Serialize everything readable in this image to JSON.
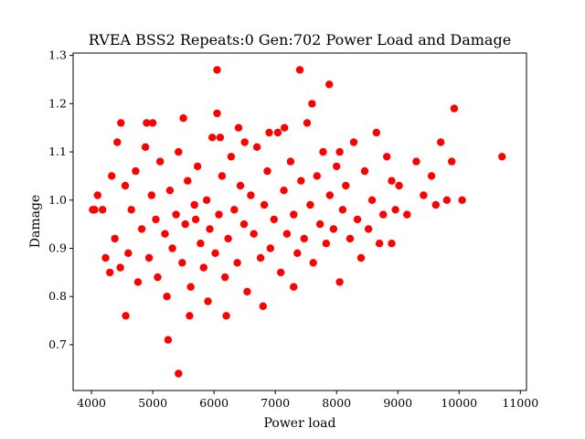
{
  "chart_data": {
    "type": "scatter",
    "title": "RVEA BSS2 Repeats:0 Gen:702 Power Load and Damage",
    "xlabel": "Power load",
    "ylabel": "Damage",
    "xlim": [
      3700,
      11100
    ],
    "ylim": [
      0.605,
      1.305
    ],
    "xticks": [
      4000,
      5000,
      6000,
      7000,
      8000,
      9000,
      10000,
      11000
    ],
    "yticks": [
      0.7,
      0.8,
      0.9,
      1.0,
      1.1,
      1.2,
      1.3
    ],
    "grid": false,
    "legend": "none",
    "marker_color": "#ff0000",
    "series": [
      {
        "x": [
          4050,
          4100,
          4180,
          4230,
          4300,
          4330,
          4380,
          4420,
          4470,
          4550,
          4600,
          4650,
          4720,
          4760,
          4820,
          4880,
          4940,
          4980,
          5050,
          5080,
          5120,
          5200,
          5230,
          5280,
          5320,
          5380,
          5420,
          5480,
          5530,
          5570,
          5620,
          5680,
          5730,
          5780,
          5830,
          5880,
          5930,
          5970,
          6020,
          6080,
          6130,
          6180,
          6230,
          6280,
          6330,
          6380,
          6430,
          6490,
          6540,
          6600,
          6650,
          6700,
          6760,
          6820,
          6870,
          6920,
          6980,
          7040,
          7090,
          7140,
          7190,
          7250,
          7300,
          7360,
          7420,
          7470,
          7520,
          7570,
          7620,
          7680,
          7730,
          7780,
          7830,
          7890,
          7950,
          8000,
          8050,
          8100,
          8150,
          8220,
          8280,
          8340,
          8400,
          8460,
          8520,
          8580,
          8650,
          8700,
          8760,
          8820,
          8900,
          8960,
          9020,
          9150,
          9300,
          9420,
          9550,
          9620,
          9700,
          9800,
          9880,
          10050,
          10700,
          9920,
          6050,
          7400,
          7880,
          4480,
          5250,
          5420,
          6050,
          6400,
          7150,
          6900,
          8050,
          8900,
          4020,
          4560,
          4900,
          5600,
          6800,
          6100,
          5500,
          5000,
          7600,
          6200,
          5900,
          7300,
          6500,
          5700
        ],
        "y": [
          0.98,
          1.01,
          0.98,
          0.88,
          0.85,
          1.05,
          0.92,
          1.12,
          0.86,
          1.03,
          0.89,
          0.98,
          1.06,
          0.83,
          0.94,
          1.11,
          0.88,
          1.01,
          0.96,
          0.84,
          1.08,
          0.93,
          0.8,
          1.02,
          0.9,
          0.97,
          1.1,
          0.87,
          0.95,
          1.04,
          0.82,
          0.99,
          1.07,
          0.91,
          0.86,
          1.0,
          0.94,
          1.13,
          0.89,
          0.97,
          1.05,
          0.84,
          0.92,
          1.09,
          0.98,
          0.87,
          1.03,
          0.95,
          0.81,
          1.01,
          0.93,
          1.11,
          0.88,
          0.99,
          1.06,
          0.9,
          0.96,
          1.14,
          0.85,
          1.02,
          0.93,
          1.08,
          0.97,
          0.89,
          1.04,
          0.92,
          1.16,
          0.99,
          0.87,
          1.05,
          0.95,
          1.1,
          0.91,
          1.01,
          0.94,
          1.07,
          0.83,
          0.98,
          1.03,
          0.92,
          1.12,
          0.96,
          0.88,
          1.06,
          0.94,
          1.0,
          1.14,
          0.91,
          0.97,
          1.09,
          1.04,
          0.98,
          1.03,
          0.97,
          1.08,
          1.01,
          1.05,
          0.99,
          1.12,
          1.0,
          1.08,
          1.0,
          1.09,
          1.19,
          1.27,
          1.27,
          1.24,
          1.16,
          0.71,
          0.64,
          1.18,
          1.15,
          1.15,
          1.14,
          1.1,
          0.91,
          0.98,
          0.76,
          1.16,
          0.76,
          0.78,
          1.13,
          1.17,
          1.16,
          1.2,
          0.76,
          0.79,
          0.82,
          1.12,
          0.96
        ]
      }
    ]
  }
}
